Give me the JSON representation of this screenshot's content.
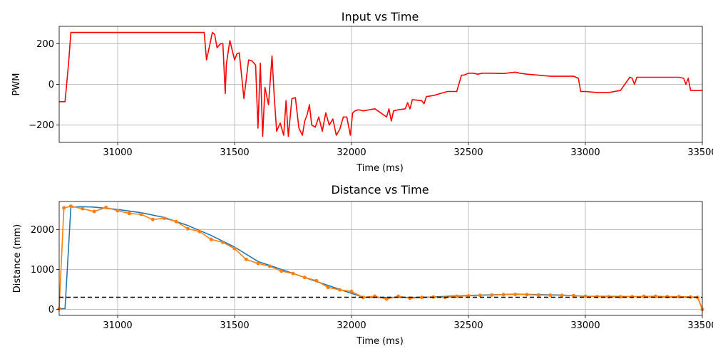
{
  "chart_data": [
    {
      "type": "line",
      "title": "Input vs Time",
      "xlabel": "Time (ms)",
      "ylabel": "PWM",
      "xlim": [
        30750,
        33500
      ],
      "ylim": [
        -285,
        285
      ],
      "xticks": [
        31000,
        31500,
        32000,
        32500,
        33000,
        33500
      ],
      "yticks": [
        -200,
        0,
        200
      ],
      "xtick_labels": [
        "31000",
        "31500",
        "32000",
        "32500",
        "33000",
        "33500"
      ],
      "ytick_labels": [
        "−200",
        "0",
        "200"
      ],
      "grid": true,
      "series": [
        {
          "color": "#ff0000",
          "x": [
            30750,
            30775,
            30790,
            30800,
            31000,
            31200,
            31370,
            31380,
            31395,
            31405,
            31415,
            31425,
            31440,
            31450,
            31460,
            31465,
            31480,
            31500,
            31510,
            31520,
            31540,
            31560,
            31575,
            31590,
            31600,
            31610,
            31620,
            31630,
            31645,
            31660,
            31670,
            31680,
            31695,
            31710,
            31720,
            31730,
            31745,
            31760,
            31775,
            31790,
            31800,
            31810,
            31820,
            31830,
            31845,
            31860,
            31875,
            31890,
            31905,
            31920,
            31935,
            31950,
            31965,
            31980,
            31995,
            32005,
            32015,
            32030,
            32050,
            32100,
            32150,
            32160,
            32170,
            32180,
            32200,
            32230,
            32240,
            32250,
            32260,
            32300,
            32310,
            32320,
            32350,
            32380,
            32410,
            32450,
            32470,
            32480,
            32500,
            32520,
            32540,
            32560,
            32600,
            32650,
            32700,
            32720,
            32750,
            32800,
            32850,
            32900,
            32950,
            32970,
            32980,
            33000,
            33050,
            33100,
            33150,
            33190,
            33200,
            33210,
            33220,
            33250,
            33300,
            33350,
            33400,
            33420,
            33430,
            33440,
            33450,
            33500
          ],
          "y": [
            -85,
            -85,
            100,
            255,
            255,
            255,
            255,
            120,
            200,
            255,
            245,
            180,
            200,
            200,
            -45,
            100,
            215,
            120,
            150,
            155,
            -70,
            120,
            115,
            95,
            -215,
            105,
            -255,
            -15,
            -100,
            140,
            -70,
            -230,
            -190,
            -250,
            -80,
            -255,
            -70,
            -65,
            -215,
            -250,
            -180,
            -150,
            -100,
            -200,
            -210,
            -160,
            -230,
            -140,
            -200,
            -170,
            -250,
            -220,
            -160,
            -160,
            -250,
            -140,
            -130,
            -125,
            -130,
            -120,
            -160,
            -120,
            -180,
            -130,
            -125,
            -120,
            -90,
            -120,
            -75,
            -80,
            -95,
            -60,
            -55,
            -45,
            -35,
            -35,
            45,
            45,
            55,
            55,
            50,
            55,
            55,
            53,
            60,
            55,
            50,
            45,
            40,
            40,
            40,
            30,
            -35,
            -35,
            -40,
            -40,
            -30,
            35,
            30,
            0,
            35,
            35,
            35,
            35,
            35,
            30,
            0,
            30,
            -30,
            -30
          ]
        }
      ]
    },
    {
      "type": "line",
      "title": "Distance vs Time",
      "xlabel": "Time (ms)",
      "ylabel": "Distance (mm)",
      "xlim": [
        30750,
        33500
      ],
      "ylim": [
        -150,
        2700
      ],
      "xticks": [
        31000,
        31500,
        32000,
        32500,
        33000,
        33500
      ],
      "yticks": [
        0,
        1000,
        2000
      ],
      "xtick_labels": [
        "31000",
        "31500",
        "32000",
        "32500",
        "33000",
        "33500"
      ],
      "ytick_labels": [
        "0",
        "1000",
        "2000"
      ],
      "grid": true,
      "series": [
        {
          "color": "#1f77b4",
          "x": [
            30750,
            30775,
            30800,
            30850,
            30900,
            31000,
            31100,
            31200,
            31300,
            31400,
            31500,
            31600,
            31700,
            31800,
            31900,
            31950,
            32000,
            32050,
            32100,
            32200,
            32300,
            32500,
            32700,
            32900,
            33000,
            33200,
            33400,
            33480,
            33500
          ],
          "y": [
            20,
            20,
            2560,
            2570,
            2560,
            2500,
            2420,
            2300,
            2100,
            1850,
            1560,
            1200,
            1000,
            800,
            600,
            500,
            400,
            310,
            300,
            300,
            300,
            350,
            380,
            360,
            330,
            320,
            310,
            310,
            10
          ]
        },
        {
          "color": "#ff7f0e",
          "x": [
            30750,
            30770,
            30800,
            30850,
            30900,
            30950,
            31000,
            31050,
            31100,
            31150,
            31200,
            31250,
            31300,
            31350,
            31400,
            31450,
            31500,
            31550,
            31600,
            31650,
            31700,
            31750,
            31800,
            31850,
            31900,
            31950,
            32000,
            32050,
            32100,
            32150,
            32200,
            32250,
            32300,
            32350,
            32400,
            32450,
            32500,
            32550,
            32600,
            32650,
            32700,
            32750,
            32800,
            32850,
            32900,
            32950,
            33000,
            33050,
            33100,
            33150,
            33200,
            33250,
            33300,
            33350,
            33400,
            33450,
            33480,
            33500
          ],
          "y": [
            20,
            2540,
            2580,
            2520,
            2450,
            2550,
            2470,
            2400,
            2380,
            2250,
            2280,
            2200,
            2020,
            1950,
            1750,
            1680,
            1520,
            1250,
            1150,
            1080,
            960,
            900,
            800,
            720,
            550,
            490,
            450,
            300,
            330,
            260,
            330,
            280,
            300,
            310,
            300,
            330,
            340,
            350,
            360,
            370,
            375,
            370,
            360,
            355,
            350,
            345,
            330,
            320,
            315,
            315,
            320,
            325,
            330,
            320,
            320,
            310,
            300,
            0
          ]
        },
        {
          "color": "#000000",
          "dashed": true,
          "x": [
            30750,
            33500
          ],
          "y": [
            304,
            304
          ]
        }
      ]
    }
  ]
}
